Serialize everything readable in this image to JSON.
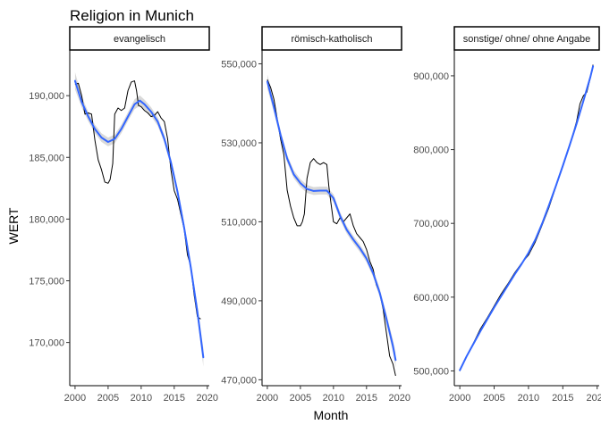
{
  "chart_data": {
    "type": "line",
    "title": "Religion in Munich",
    "xlabel": "Month",
    "ylabel": "WERT",
    "grid": false,
    "colors": {
      "raw": "#000000",
      "smooth": "#3366FF",
      "ribbon": "#CCCCCC",
      "strip_border": "#000000"
    },
    "panels": [
      {
        "strip": "evangelisch",
        "xlim": [
          1999.2,
          2020.3
        ],
        "ylim": [
          166500,
          193700
        ],
        "xticks": [
          2000,
          2005,
          2010,
          2015,
          2020
        ],
        "yticks": [
          170000,
          175000,
          180000,
          185000,
          190000
        ],
        "ytick_labels": [
          "170,000",
          "175,000",
          "180,000",
          "185,000",
          "190,000"
        ],
        "raw": {
          "x": [
            2000.0,
            2000.5,
            2001.0,
            2001.5,
            2002.0,
            2002.5,
            2003.0,
            2003.5,
            2004.0,
            2004.5,
            2005.0,
            2005.3,
            2005.7,
            2006.0,
            2006.5,
            2007.0,
            2007.5,
            2008.0,
            2008.5,
            2009.0,
            2009.3,
            2009.6,
            2010.0,
            2010.5,
            2011.0,
            2011.5,
            2012.0,
            2012.5,
            2013.0,
            2013.5,
            2014.0,
            2014.5,
            2015.0,
            2015.5,
            2016.0,
            2016.5,
            2017.0,
            2017.5,
            2018.0,
            2018.5,
            2019.0
          ],
          "y": [
            190900,
            191000,
            190000,
            188500,
            188600,
            188500,
            186400,
            184800,
            184000,
            183000,
            182900,
            183200,
            184500,
            188500,
            189000,
            188800,
            189000,
            190400,
            191100,
            191200,
            190400,
            189200,
            189100,
            188800,
            188600,
            188300,
            188400,
            188700,
            188200,
            187900,
            186500,
            184000,
            182300,
            181600,
            180400,
            179200,
            177100,
            176200,
            173900,
            172100,
            171900
          ]
        },
        "smooth": {
          "x": [
            2000.0,
            2001.0,
            2002.0,
            2003.0,
            2004.0,
            2005.0,
            2006.0,
            2007.0,
            2008.0,
            2009.0,
            2009.8,
            2010.5,
            2011.5,
            2012.5,
            2013.5,
            2014.5,
            2015.5,
            2016.5,
            2017.5,
            2018.5,
            2019.4
          ],
          "y": [
            191200,
            189500,
            188300,
            187300,
            186600,
            186250,
            186500,
            187300,
            188300,
            189300,
            189600,
            189300,
            188700,
            187900,
            186500,
            184600,
            182200,
            179300,
            176100,
            172500,
            168800
          ],
          "band": [
            700,
            450,
            380,
            350,
            350,
            350,
            350,
            350,
            350,
            400,
            420,
            380,
            360,
            340,
            330,
            330,
            340,
            360,
            420,
            520,
            750
          ]
        }
      },
      {
        "strip": "römisch-katholisch",
        "xlim": [
          1999.2,
          2020.3
        ],
        "ylim": [
          468500,
          553500
        ],
        "xticks": [
          2000,
          2005,
          2010,
          2015,
          2020
        ],
        "yticks": [
          470000,
          490000,
          510000,
          530000,
          550000
        ],
        "ytick_labels": [
          "470,000",
          "490,000",
          "510,000",
          "530,000",
          "550,000"
        ],
        "raw": {
          "x": [
            2000.0,
            2000.5,
            2001.0,
            2001.5,
            2002.0,
            2002.5,
            2003.0,
            2003.5,
            2004.0,
            2004.5,
            2005.0,
            2005.3,
            2005.6,
            2006.0,
            2006.5,
            2007.0,
            2007.5,
            2008.0,
            2008.5,
            2009.0,
            2009.3,
            2009.6,
            2010.0,
            2010.5,
            2011.0,
            2011.5,
            2012.0,
            2012.5,
            2013.0,
            2013.5,
            2014.0,
            2014.5,
            2015.0,
            2015.5,
            2016.0,
            2016.5,
            2017.0,
            2017.5,
            2018.0,
            2018.5,
            2019.0,
            2019.4
          ],
          "y": [
            546000,
            544000,
            541000,
            536000,
            531000,
            527000,
            518000,
            514000,
            511000,
            509000,
            509000,
            510000,
            512000,
            521000,
            525000,
            526000,
            525000,
            524500,
            525000,
            524500,
            519000,
            515000,
            510000,
            509500,
            511000,
            510000,
            511000,
            512000,
            509000,
            507000,
            506000,
            505000,
            503000,
            500000,
            498000,
            494000,
            492000,
            488000,
            482000,
            476000,
            474000,
            471000
          ]
        },
        "smooth": {
          "x": [
            2000.0,
            2001.0,
            2002.0,
            2003.0,
            2004.0,
            2005.0,
            2006.0,
            2007.0,
            2008.0,
            2009.0,
            2010.0,
            2011.0,
            2012.0,
            2013.0,
            2014.0,
            2015.0,
            2016.0,
            2017.0,
            2018.0,
            2019.0,
            2019.4
          ],
          "y": [
            545500,
            539000,
            532000,
            526000,
            522000,
            519800,
            518300,
            517800,
            517900,
            517900,
            516000,
            511500,
            508000,
            505500,
            503300,
            500700,
            497000,
            492000,
            485500,
            478500,
            475000
          ],
          "band": [
            1800,
            1300,
            1100,
            1000,
            1000,
            1000,
            1000,
            1000,
            1000,
            1000,
            1000,
            1000,
            950,
            950,
            950,
            950,
            1000,
            1100,
            1250,
            1600,
            1900
          ]
        }
      },
      {
        "strip": "sonstige/ ohne/ ohne Angabe",
        "xlim": [
          1999.2,
          2020.3
        ],
        "ylim": [
          480000,
          935000
        ],
        "xticks": [
          2000,
          2005,
          2010,
          2015,
          2020
        ],
        "yticks": [
          500000,
          600000,
          700000,
          800000,
          900000
        ],
        "ytick_labels": [
          "500,000",
          "600,000",
          "700,000",
          "800,000",
          "900,000"
        ],
        "raw": {
          "x": [
            2000.0,
            2001.0,
            2002.0,
            2003.0,
            2004.0,
            2005.0,
            2006.0,
            2007.0,
            2008.0,
            2009.0,
            2010.0,
            2011.0,
            2012.0,
            2013.0,
            2014.0,
            2015.0,
            2016.0,
            2017.0,
            2017.5,
            2018.0,
            2018.5,
            2019.0,
            2019.4
          ],
          "y": [
            500000,
            520000,
            538000,
            557000,
            572000,
            588000,
            604000,
            618000,
            633000,
            646000,
            657000,
            675000,
            698000,
            722000,
            750000,
            778000,
            805000,
            838000,
            862000,
            873000,
            878000,
            897000,
            915000
          ]
        },
        "smooth": {
          "x": [
            2000.0,
            2001.0,
            2002.0,
            2003.0,
            2004.0,
            2005.0,
            2006.0,
            2007.0,
            2008.0,
            2009.0,
            2010.0,
            2011.0,
            2012.0,
            2013.0,
            2014.0,
            2015.0,
            2016.0,
            2017.0,
            2018.0,
            2019.0,
            2019.4
          ],
          "y": [
            501000,
            520000,
            537000,
            554000,
            570000,
            586000,
            601000,
            616000,
            631000,
            645000,
            660000,
            678000,
            700000,
            725000,
            751000,
            778000,
            806000,
            835000,
            866000,
            898000,
            913000
          ],
          "band": [
            2500,
            1800,
            1500,
            1400,
            1400,
            1400,
            1400,
            1400,
            1400,
            1400,
            1400,
            1400,
            1400,
            1400,
            1400,
            1400,
            1400,
            1500,
            1800,
            2200,
            2600
          ]
        }
      }
    ]
  }
}
